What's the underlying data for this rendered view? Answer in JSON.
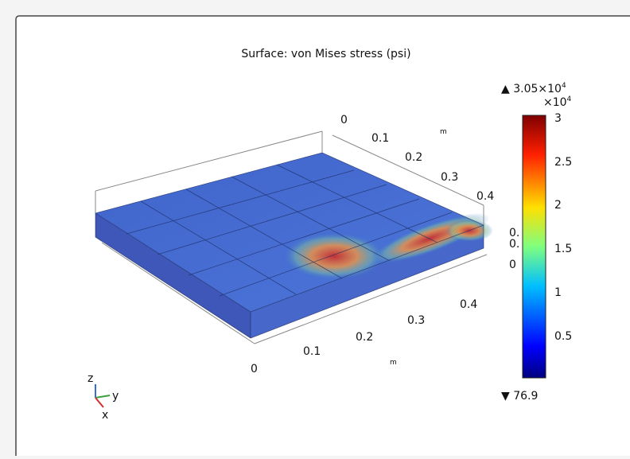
{
  "title": "Surface: von Mises stress (psi)",
  "colorbar": {
    "max_label": "3.05×10",
    "max_exponent": "4",
    "multiplier": "×10",
    "multiplier_exponent": "4",
    "ticks": [
      "3",
      "2.5",
      "2",
      "1.5",
      "1",
      "0.5"
    ],
    "min_label": "76.9"
  },
  "back_axis": {
    "ticks": [
      "0",
      "0.1",
      "0.2",
      "0.3",
      "0.4"
    ],
    "unit": "m"
  },
  "front_axis": {
    "ticks": [
      "0",
      "0.1",
      "0.2",
      "0.3",
      "0.4"
    ],
    "unit": "m"
  },
  "z_axis": {
    "ticks": [
      "0.",
      "0.",
      "0"
    ]
  },
  "triad": {
    "z": "z",
    "y": "y",
    "x": "x"
  }
}
